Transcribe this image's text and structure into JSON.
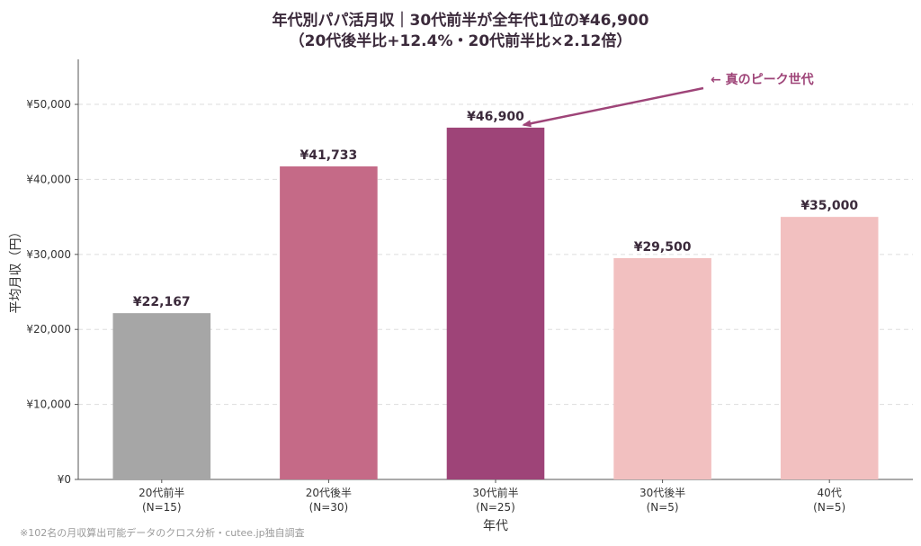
{
  "chart_data": {
    "type": "bar",
    "title": "年代別パパ活月収｜30代前半が全年代1位の¥46,900",
    "subtitle": "（20代後半比+12.4%・20代前半比×2.12倍）",
    "xlabel": "年代",
    "ylabel": "平均月収（円）",
    "ylim": [
      0,
      56000
    ],
    "yticks": [
      0,
      10000,
      20000,
      30000,
      40000,
      50000
    ],
    "ytick_labels": [
      "¥0",
      "¥10,000",
      "¥20,000",
      "¥30,000",
      "¥40,000",
      "¥50,000"
    ],
    "grid": true,
    "categories": [
      {
        "name": "20代前半",
        "n": "(N=15)"
      },
      {
        "name": "20代後半",
        "n": "(N=30)"
      },
      {
        "name": "30代前半",
        "n": "(N=25)"
      },
      {
        "name": "30代後半",
        "n": "(N=5)"
      },
      {
        "name": "40代",
        "n": "(N=5)"
      }
    ],
    "values": [
      22167,
      41733,
      46900,
      29500,
      35000
    ],
    "value_labels": [
      "¥22,167",
      "¥41,733",
      "¥46,900",
      "¥29,500",
      "¥35,000"
    ],
    "colors": [
      "#a6a6a6",
      "#c56a87",
      "#9e4478",
      "#f2c0c0",
      "#f2c0c0"
    ],
    "annotation": {
      "text": "← 真のピーク世代",
      "target_index": 2,
      "color": "#9e4478"
    }
  },
  "footnote": "※102名の月収算出可能データのクロス分析・cutee.jp独自調査"
}
